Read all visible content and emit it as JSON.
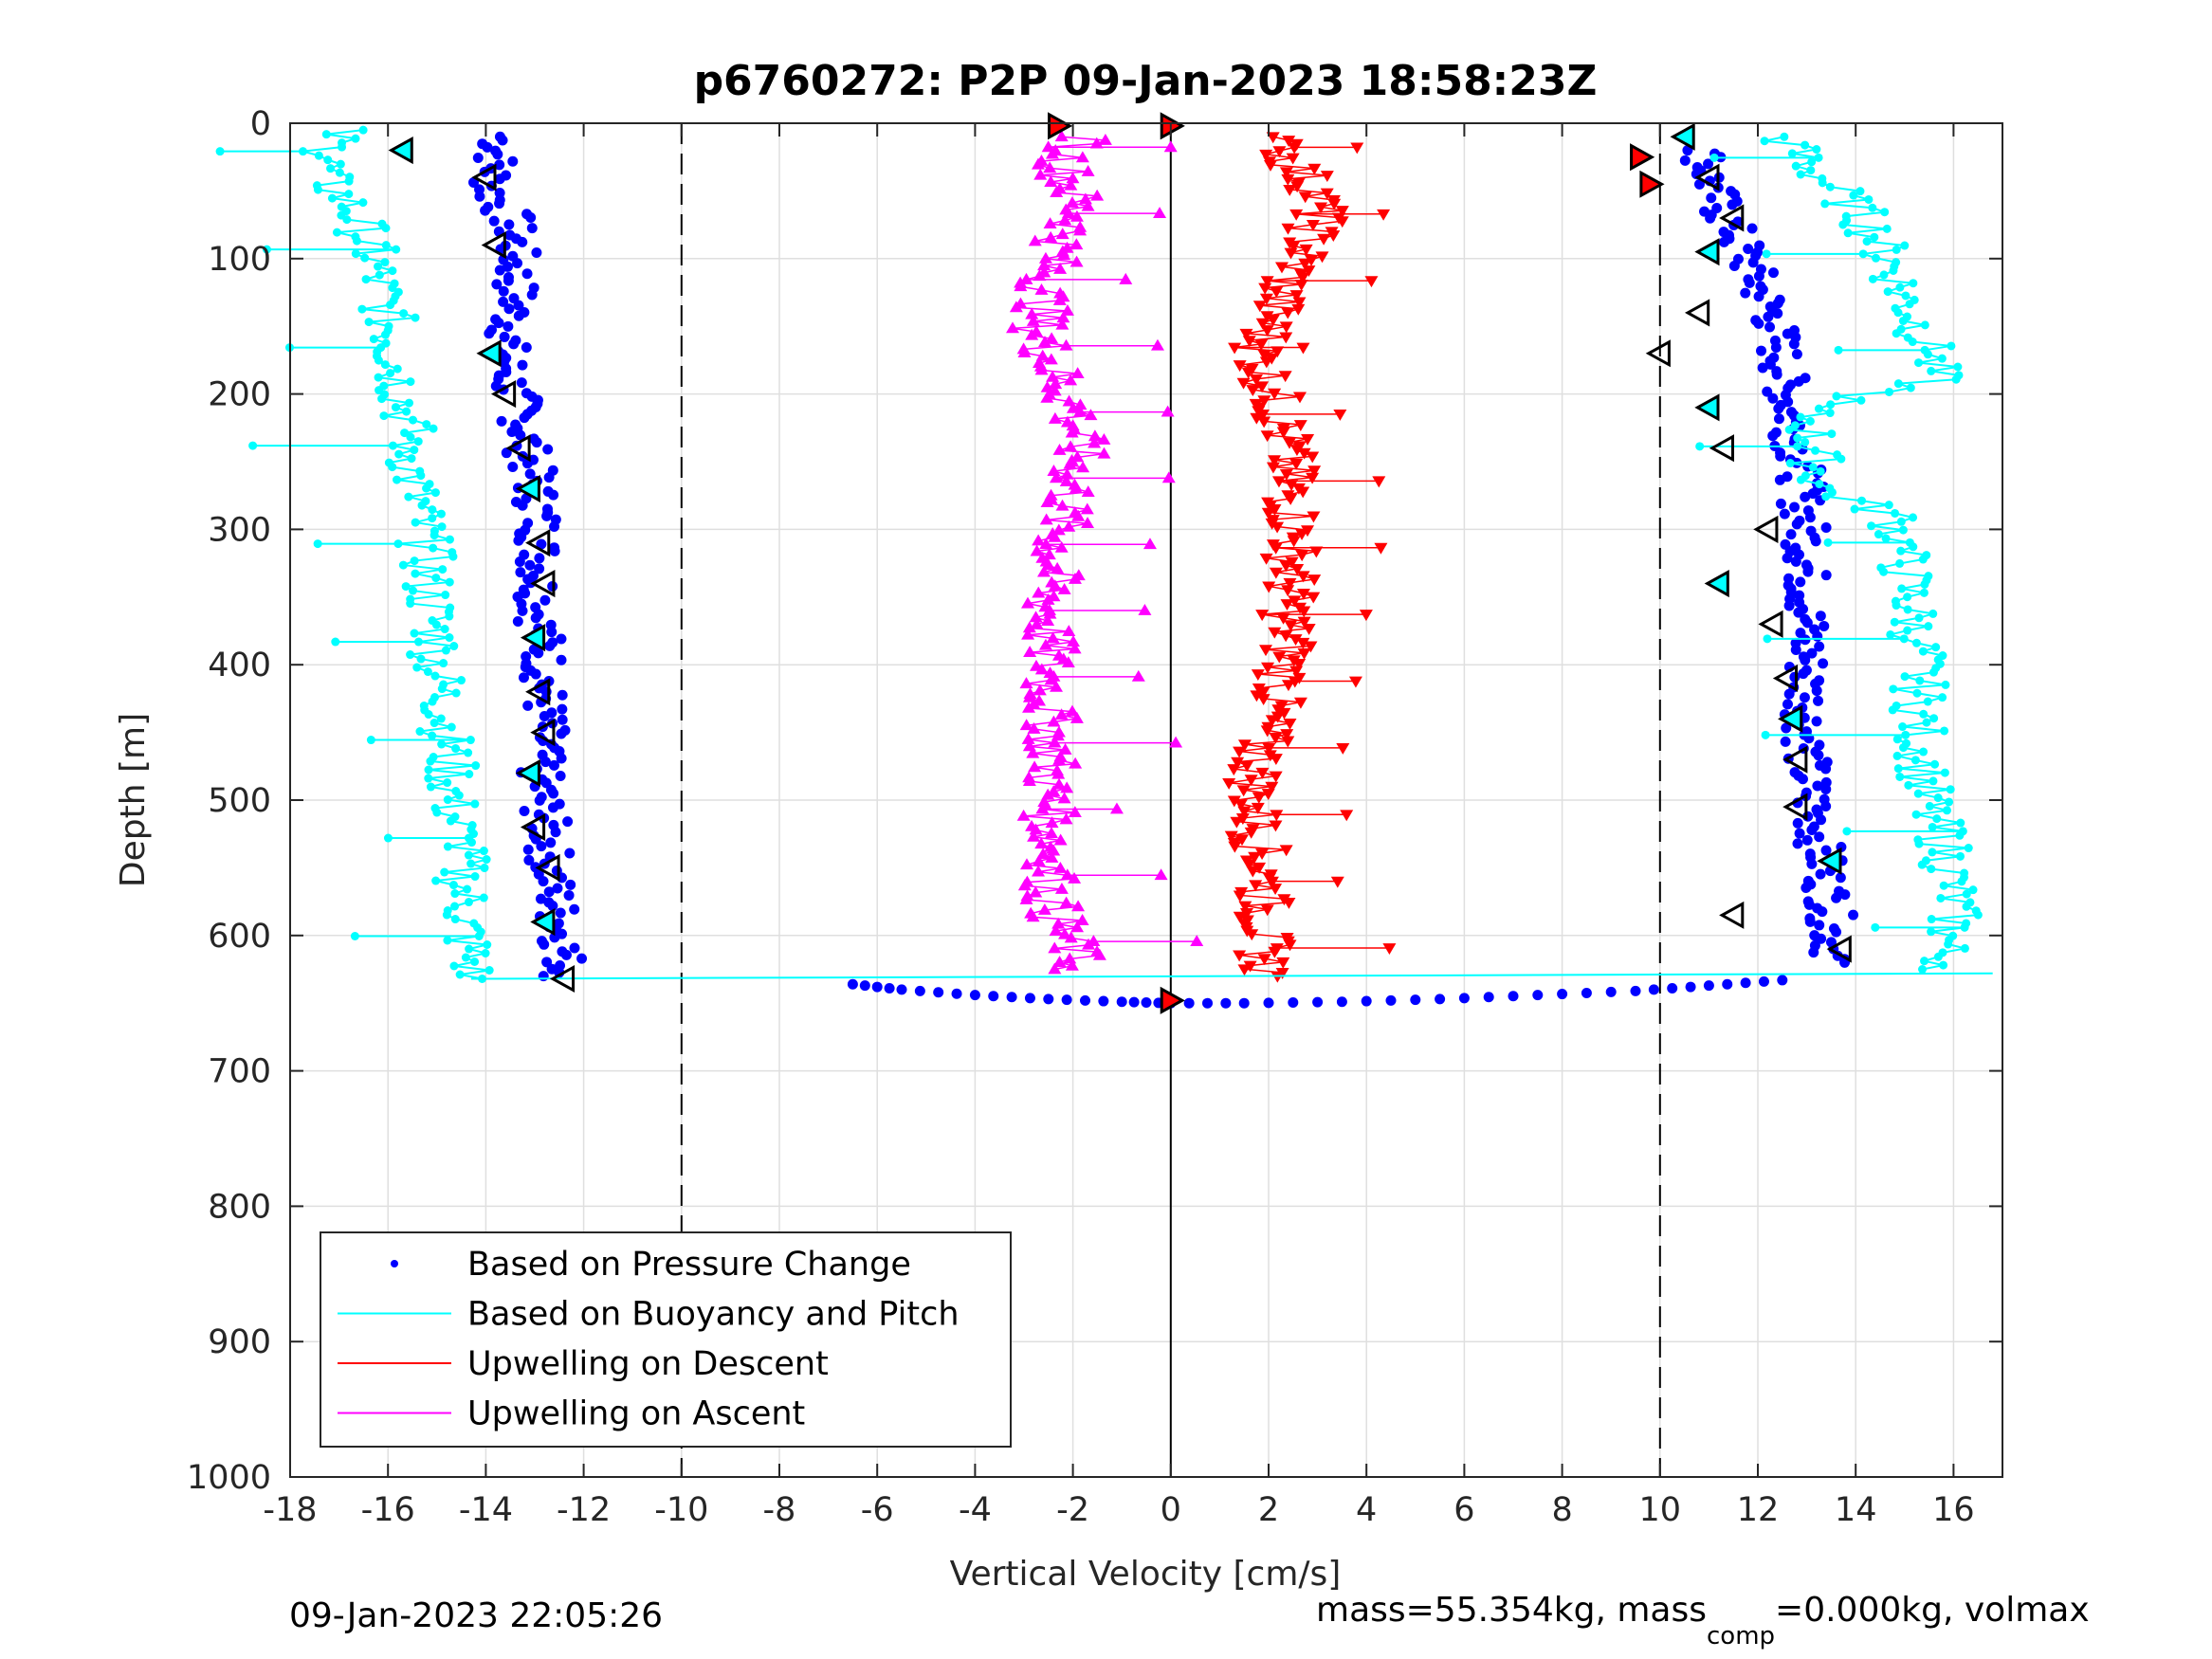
{
  "figure": {
    "footer_left": "09-Jan-2023 22:05:26",
    "footer_right": {
      "part1": "mass=55.354kg, mass",
      "sub": "comp",
      "part2": "=0.000kg, volmax"
    }
  },
  "chart_data": {
    "type": "scatter",
    "title": "p6760272: P2P 09-Jan-2023 18:58:23Z",
    "xlabel": "Vertical Velocity [cm/s]",
    "ylabel": "Depth [m]",
    "xlim": [
      -18,
      17
    ],
    "ylim": [
      0,
      1000
    ],
    "y_reversed": true,
    "grid": true,
    "xticks": [
      -18,
      -16,
      -14,
      -12,
      -10,
      -8,
      -6,
      -4,
      -2,
      0,
      2,
      4,
      6,
      8,
      10,
      12,
      14,
      16
    ],
    "yticks": [
      0,
      100,
      200,
      300,
      400,
      500,
      600,
      700,
      800,
      900,
      1000
    ],
    "reference_lines": [
      {
        "x": -10,
        "style": "dashed"
      },
      {
        "x": 0,
        "style": "solid"
      },
      {
        "x": 10,
        "style": "dashed"
      }
    ],
    "legend": {
      "location": "bottom-left",
      "entries": [
        {
          "label": "Based on Pressure Change",
          "color": "#0000ff",
          "marker": "dot"
        },
        {
          "label": "Based on Buoyancy and Pitch",
          "color": "#00ffff",
          "marker": "line"
        },
        {
          "label": "Upwelling on Descent",
          "color": "#ff0000",
          "marker": "line"
        },
        {
          "label": "Upwelling on Ascent",
          "color": "#ff00ff",
          "marker": "line"
        }
      ]
    },
    "series": [
      {
        "name": "Based on Pressure Change (descent)",
        "color": "#0000ff",
        "marker": "dot",
        "depth": [
          10,
          30,
          50,
          70,
          90,
          110,
          130,
          150,
          170,
          190,
          210,
          230,
          250,
          270,
          290,
          310,
          330,
          350,
          370,
          390,
          410,
          430,
          450,
          470,
          490,
          510,
          530,
          550,
          570,
          590,
          610,
          630
        ],
        "velocity": [
          -13.7,
          -13.8,
          -13.9,
          -13.5,
          -13.4,
          -13.4,
          -13.4,
          -13.5,
          -13.6,
          -13.5,
          -13.3,
          -13.2,
          -13.1,
          -13.0,
          -12.9,
          -12.9,
          -12.9,
          -12.9,
          -12.9,
          -12.8,
          -12.8,
          -12.8,
          -12.8,
          -12.9,
          -12.9,
          -12.8,
          -12.7,
          -12.7,
          -12.6,
          -12.5,
          -12.4,
          -12.4
        ]
      },
      {
        "name": "Based on Pressure Change (ascent)",
        "color": "#0000ff",
        "marker": "dot",
        "depth": [
          20,
          40,
          60,
          80,
          100,
          120,
          140,
          160,
          180,
          200,
          220,
          240,
          260,
          280,
          300,
          320,
          340,
          360,
          380,
          400,
          420,
          440,
          460,
          480,
          500,
          520,
          540,
          560,
          580,
          600,
          620
        ],
        "velocity": [
          10.9,
          11.0,
          11.2,
          11.5,
          11.8,
          12.0,
          12.3,
          12.4,
          12.5,
          12.6,
          12.7,
          12.8,
          12.9,
          12.9,
          13.0,
          13.0,
          13.0,
          13.0,
          13.0,
          13.0,
          13.0,
          13.0,
          13.0,
          13.0,
          13.1,
          13.2,
          13.3,
          13.4,
          13.5,
          13.5,
          13.6
        ]
      },
      {
        "name": "Based on Pressure Change (bottom turn)",
        "color": "#0000ff",
        "marker": "dot",
        "depth": [
          636,
          640,
          644,
          647,
          649,
          650,
          650,
          649,
          647,
          644,
          641,
          637,
          633
        ],
        "velocity": [
          -6.5,
          -5.5,
          -4.0,
          -2.5,
          -1.0,
          0.0,
          1.5,
          3.5,
          5.5,
          7.5,
          9.5,
          11.0,
          12.5
        ]
      },
      {
        "name": "Based on Buoyancy and Pitch (descent)",
        "color": "#00ffff",
        "marker": "line",
        "depth": [
          5,
          20,
          40,
          60,
          80,
          100,
          120,
          140,
          160,
          180,
          200,
          220,
          240,
          260,
          280,
          300,
          320,
          340,
          360,
          380,
          400,
          420,
          440,
          460,
          480,
          500,
          520,
          540,
          560,
          580,
          600,
          620,
          632
        ],
        "velocity": [
          -17.0,
          -17.2,
          -17.3,
          -16.8,
          -16.5,
          -16.3,
          -16.2,
          -16.0,
          -15.9,
          -15.8,
          -15.7,
          -15.6,
          -15.5,
          -15.5,
          -15.4,
          -15.3,
          -15.2,
          -15.2,
          -15.1,
          -15.0,
          -15.0,
          -14.9,
          -14.8,
          -14.8,
          -14.7,
          -14.7,
          -14.6,
          -14.5,
          -14.5,
          -14.4,
          -14.4,
          -14.3,
          -14.3
        ]
      },
      {
        "name": "Based on Buoyancy and Pitch (ascent)",
        "color": "#00ffff",
        "marker": "line",
        "depth": [
          10,
          30,
          50,
          70,
          90,
          110,
          130,
          150,
          170,
          190,
          210,
          230,
          250,
          270,
          290,
          310,
          330,
          350,
          370,
          390,
          410,
          430,
          450,
          470,
          490,
          510,
          530,
          550,
          570,
          590,
          610,
          625
        ],
        "velocity": [
          12.5,
          13.0,
          13.6,
          14.2,
          14.5,
          14.8,
          15.0,
          15.3,
          15.5,
          15.6,
          13.0,
          13.1,
          13.2,
          13.3,
          14.8,
          14.9,
          15.0,
          15.1,
          15.2,
          15.3,
          15.3,
          15.3,
          15.3,
          15.4,
          15.4,
          15.5,
          15.8,
          15.9,
          16.0,
          16.0,
          15.8,
          15.9
        ]
      },
      {
        "name": "Upwelling on Descent",
        "color": "#ff0000",
        "marker": "triangle-down",
        "depth": [
          10,
          30,
          50,
          70,
          90,
          110,
          130,
          150,
          170,
          190,
          210,
          230,
          250,
          270,
          290,
          310,
          330,
          350,
          370,
          390,
          410,
          430,
          450,
          470,
          490,
          510,
          530,
          550,
          570,
          590,
          610,
          630
        ],
        "velocity": [
          2.0,
          2.5,
          3.0,
          3.0,
          2.8,
          2.5,
          2.2,
          2.0,
          1.8,
          2.0,
          2.2,
          2.3,
          2.4,
          2.4,
          2.5,
          2.5,
          2.5,
          2.4,
          2.4,
          2.4,
          2.3,
          2.1,
          1.9,
          1.8,
          1.7,
          1.7,
          1.8,
          1.9,
          1.9,
          1.9,
          1.9,
          2.0
        ]
      },
      {
        "name": "Upwelling on Ascent",
        "color": "#ff00ff",
        "marker": "triangle-up",
        "depth": [
          10,
          30,
          50,
          70,
          90,
          110,
          130,
          150,
          170,
          190,
          210,
          230,
          250,
          270,
          290,
          310,
          330,
          350,
          370,
          390,
          410,
          430,
          450,
          470,
          490,
          510,
          530,
          550,
          570,
          590,
          610,
          625
        ],
        "velocity": [
          -1.8,
          -2.2,
          -2.0,
          -1.9,
          -2.3,
          -2.5,
          -2.6,
          -2.7,
          -2.5,
          -2.3,
          -2.0,
          -1.9,
          -1.9,
          -2.0,
          -2.2,
          -2.3,
          -2.4,
          -2.5,
          -2.5,
          -2.5,
          -2.5,
          -2.5,
          -2.4,
          -2.4,
          -2.5,
          -2.5,
          -2.4,
          -2.4,
          -2.5,
          -2.3,
          -2.0,
          -1.9
        ]
      }
    ],
    "markers": [
      {
        "label": "descent target triangles",
        "depth": [
          20,
          40,
          90,
          170,
          200,
          240,
          270,
          310,
          340,
          380,
          420,
          450,
          480,
          520,
          550,
          590,
          632
        ],
        "velocity": [
          -15.7,
          -14.0,
          -13.8,
          -13.9,
          -13.6,
          -13.3,
          -13.1,
          -12.9,
          -12.8,
          -13.0,
          -12.9,
          -12.8,
          -13.1,
          -13.0,
          -12.7,
          -12.8,
          -12.4
        ],
        "shape": "triangle-left"
      },
      {
        "label": "ascent target triangles",
        "depth": [
          10,
          40,
          70,
          95,
          140,
          170,
          210,
          240,
          300,
          340,
          370,
          410,
          440,
          470,
          505,
          545,
          585,
          610
        ],
        "velocity": [
          10.5,
          11.0,
          11.5,
          11.0,
          10.8,
          10.0,
          11.0,
          11.3,
          12.2,
          11.2,
          12.3,
          12.6,
          12.7,
          12.8,
          12.8,
          13.5,
          11.5,
          13.7
        ],
        "shape": "triangle-left"
      },
      {
        "label": "surface / bottom waypoints",
        "depth": [
          2,
          2,
          25,
          45,
          648
        ],
        "velocity": [
          -2.3,
          0.0,
          9.6,
          9.8,
          0.0
        ],
        "shape": "triangle-right"
      }
    ]
  }
}
